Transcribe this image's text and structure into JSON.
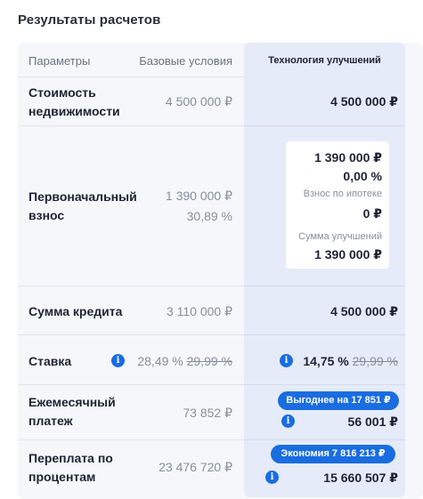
{
  "title": "Результаты расчетов",
  "header": {
    "params": "Параметры",
    "base": "Базовые условия",
    "tech": "Технология улучшений"
  },
  "rows": {
    "property": {
      "label": "Стоимость недвижимости",
      "base": "4 500 000 ₽",
      "tech": "4 500 000 ₽"
    },
    "down_payment": {
      "label": "Первоначальный взнос",
      "base": "1 390 000 ₽",
      "base_pct": "30,89 %",
      "tech_card": {
        "amount": "1 390 000 ₽",
        "pct": "0,00 %",
        "mortgage_label": "Взнос по ипотеке",
        "mortgage_value": "0 ₽",
        "improvements_label": "Сумма улучшений",
        "improvements_value": "1 390 000 ₽"
      }
    },
    "loan": {
      "label": "Сумма кредита",
      "base": "3 110 000 ₽",
      "tech": "4 500 000 ₽"
    },
    "rate": {
      "label": "Ставка",
      "base": "28,49 %",
      "base_old": "29,99 %",
      "tech": "14,75 %",
      "tech_old": "29,99 %"
    },
    "monthly": {
      "label": "Ежемесячный платеж",
      "base": "73 852 ₽",
      "badge": "Выгоднее на 17 851 ₽",
      "tech": "56 001 ₽"
    },
    "overpay": {
      "label": "Переплата по процентам",
      "base": "23 476 720 ₽",
      "badge": "Экономия 7 816 213 ₽",
      "tech": "15 660 507 ₽"
    }
  },
  "colors": {
    "accent": "#1a6de0",
    "tech_bg": "#e6ebf9",
    "panel_bg": "#f6f7fa"
  },
  "icons": {
    "info": "info-icon"
  }
}
